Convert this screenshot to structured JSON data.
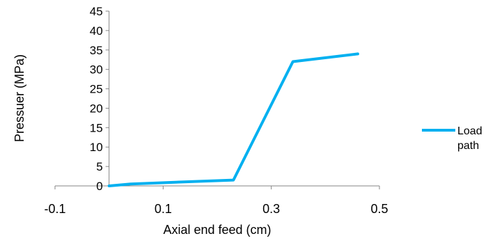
{
  "chart_data": {
    "type": "line",
    "title": "",
    "xlabel": "Axial end feed (cm)",
    "ylabel": "Pressuer (MPa)",
    "xlim": [
      -0.1,
      0.5
    ],
    "ylim": [
      0,
      45
    ],
    "x_ticks": [
      "-0.1",
      "0.1",
      "0.3",
      "0.5"
    ],
    "x_tick_values": [
      -0.1,
      0.1,
      0.3,
      0.5
    ],
    "y_ticks": [
      "0",
      "5",
      "10",
      "15",
      "20",
      "25",
      "30",
      "35",
      "40",
      "45"
    ],
    "y_tick_values": [
      0,
      5,
      10,
      15,
      20,
      25,
      30,
      35,
      40,
      45
    ],
    "grid": false,
    "legend_position": "right",
    "series": [
      {
        "name_lines": [
          "Load",
          "path"
        ],
        "color": "#00B0F0",
        "points": [
          [
            0.0,
            0.0
          ],
          [
            0.04,
            0.5
          ],
          [
            0.23,
            1.5
          ],
          [
            0.34,
            32.0
          ],
          [
            0.46,
            34.0
          ]
        ]
      }
    ]
  }
}
